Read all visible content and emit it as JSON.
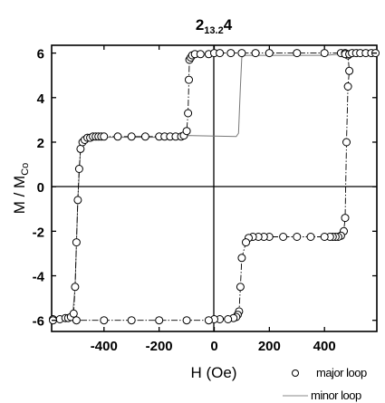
{
  "chart_data": {
    "type": "scatter",
    "title": {
      "main": "2",
      "sub": "13.2",
      "tail": "4"
    },
    "xlabel": "H (Oe)",
    "ylabel": {
      "main": "M / M",
      "sub": "Co"
    },
    "xlim": [
      -590,
      590
    ],
    "ylim": [
      -6.5,
      6.35
    ],
    "xticks": [
      "-400",
      "-200",
      "0",
      "200",
      "400"
    ],
    "xtick_values": [
      -400,
      -200,
      0,
      200,
      400
    ],
    "yticks": [
      "6",
      "4",
      "2",
      "0",
      "-2",
      "-4",
      "-6"
    ],
    "ytick_values": [
      6,
      4,
      2,
      0,
      -2,
      -4,
      -6
    ],
    "legend": {
      "position": "bottom-right",
      "entries": [
        "major loop",
        "minor loop"
      ]
    },
    "series": [
      {
        "name": "major loop",
        "marker": "open-circle",
        "line": "dash-dot",
        "points": [
          [
            -585,
            -5.95
          ],
          [
            -560,
            -5.95
          ],
          [
            -540,
            -5.9
          ],
          [
            -530,
            -5.9
          ],
          [
            -520,
            -5.85
          ],
          [
            -510,
            -5.7
          ],
          [
            -505,
            -4.5
          ],
          [
            -500,
            -2.5
          ],
          [
            -495,
            -0.6
          ],
          [
            -490,
            0.8
          ],
          [
            -485,
            1.7
          ],
          [
            -478,
            2.0
          ],
          [
            -470,
            2.1
          ],
          [
            -460,
            2.2
          ],
          [
            -450,
            2.2
          ],
          [
            -440,
            2.25
          ],
          [
            -430,
            2.25
          ],
          [
            -420,
            2.25
          ],
          [
            -410,
            2.25
          ],
          [
            -400,
            2.25
          ],
          [
            -350,
            2.25
          ],
          [
            -300,
            2.25
          ],
          [
            -250,
            2.25
          ],
          [
            -200,
            2.25
          ],
          [
            -180,
            2.25
          ],
          [
            -160,
            2.25
          ],
          [
            -140,
            2.25
          ],
          [
            -120,
            2.25
          ],
          [
            -110,
            2.3
          ],
          [
            -100,
            2.5
          ],
          [
            -95,
            3.3
          ],
          [
            -92,
            4.8
          ],
          [
            -90,
            5.7
          ],
          [
            -85,
            5.8
          ],
          [
            -80,
            5.9
          ],
          [
            -70,
            5.95
          ],
          [
            -50,
            5.95
          ],
          [
            -20,
            5.95
          ],
          [
            0,
            6.0
          ],
          [
            20,
            6.0
          ],
          [
            60,
            6.0
          ],
          [
            100,
            6.0
          ],
          [
            150,
            6.0
          ],
          [
            200,
            6.0
          ],
          [
            300,
            6.0
          ],
          [
            400,
            6.0
          ],
          [
            460,
            6.0
          ],
          [
            475,
            6.0
          ],
          [
            485,
            5.9
          ],
          [
            490,
            5.2
          ],
          [
            485,
            4.5
          ],
          [
            480,
            2.0
          ],
          [
            475,
            -1.4
          ],
          [
            470,
            -2.0
          ],
          [
            460,
            -2.2
          ],
          [
            450,
            -2.25
          ],
          [
            440,
            -2.25
          ],
          [
            430,
            -2.25
          ],
          [
            420,
            -2.25
          ],
          [
            400,
            -2.25
          ],
          [
            350,
            -2.25
          ],
          [
            300,
            -2.25
          ],
          [
            250,
            -2.25
          ],
          [
            200,
            -2.25
          ],
          [
            180,
            -2.25
          ],
          [
            160,
            -2.25
          ],
          [
            140,
            -2.25
          ],
          [
            125,
            -2.3
          ],
          [
            115,
            -2.5
          ],
          [
            100,
            -3.2
          ],
          [
            95,
            -4.5
          ],
          [
            90,
            -5.6
          ],
          [
            85,
            -5.75
          ],
          [
            80,
            -5.85
          ],
          [
            70,
            -5.9
          ],
          [
            50,
            -5.95
          ],
          [
            20,
            -5.95
          ],
          [
            0,
            -5.95
          ],
          [
            -20,
            -6.0
          ],
          [
            -100,
            -6.0
          ],
          [
            -200,
            -6.0
          ],
          [
            -300,
            -6.0
          ],
          [
            -400,
            -6.0
          ],
          [
            -500,
            -6.0
          ],
          [
            -585,
            -6.0
          ],
          [
            475,
            5.95
          ],
          [
            490,
            5.95
          ],
          [
            500,
            6.0
          ],
          [
            515,
            6.0
          ],
          [
            530,
            6.0
          ],
          [
            550,
            6.0
          ],
          [
            570,
            6.0
          ],
          [
            585,
            6.0
          ]
        ]
      },
      {
        "name": "minor loop",
        "marker": "none",
        "line": "solid-thin",
        "points": [
          [
            -585,
            -6.0
          ],
          [
            -515,
            -5.9
          ],
          [
            -505,
            -4.5
          ],
          [
            -495,
            -0.6
          ],
          [
            -485,
            1.7
          ],
          [
            -470,
            2.1
          ],
          [
            -440,
            2.22
          ],
          [
            -300,
            2.22
          ],
          [
            -150,
            2.22
          ],
          [
            -110,
            2.22
          ],
          [
            -100,
            2.3
          ],
          [
            80,
            2.25
          ],
          [
            88,
            2.4
          ],
          [
            95,
            4.5
          ],
          [
            100,
            5.8
          ],
          [
            110,
            5.9
          ],
          [
            200,
            5.9
          ],
          [
            300,
            5.9
          ],
          [
            400,
            5.9
          ],
          [
            460,
            5.95
          ],
          [
            585,
            6.0
          ]
        ]
      }
    ]
  }
}
